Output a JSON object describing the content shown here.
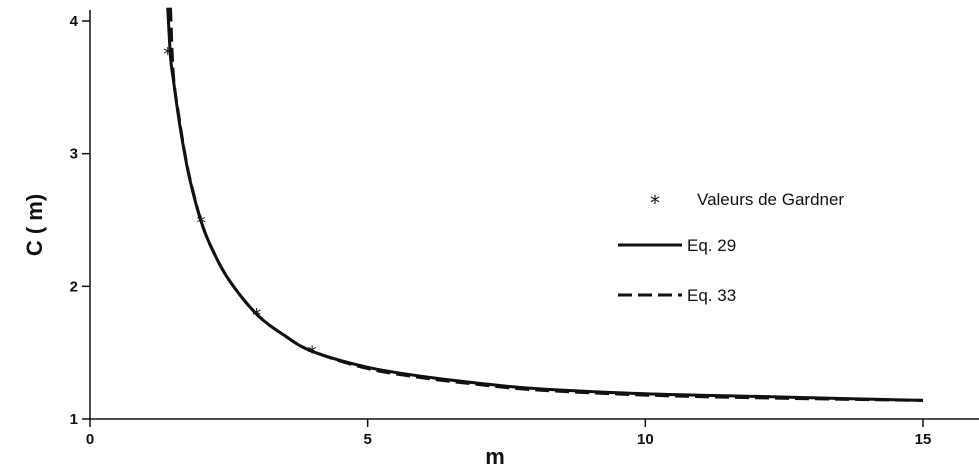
{
  "chart_data": {
    "type": "line",
    "xlabel": "m",
    "ylabel": "C ( m)",
    "xlim": [
      0,
      16
    ],
    "ylim": [
      1,
      4.1
    ],
    "x_ticks": [
      0,
      5,
      10,
      15
    ],
    "y_ticks": [
      1,
      2,
      3,
      4
    ],
    "grid": false,
    "legend_position": "right",
    "series": [
      {
        "name": "Valeurs de Gardner",
        "style": "markers",
        "marker": "*",
        "x": [
          1.4,
          2.0,
          3.0,
          4.0
        ],
        "y": [
          3.76,
          2.49,
          1.79,
          1.51
        ]
      },
      {
        "name": "Eq. 29",
        "style": "solid",
        "x": [
          1.4,
          1.45,
          1.5,
          1.6,
          1.7,
          1.8,
          2.0,
          2.2,
          2.5,
          3.0,
          3.5,
          4.0,
          5.0,
          6.0,
          7.0,
          8.0,
          10.0,
          12.0,
          15.0
        ],
        "y": [
          4.1,
          3.73,
          3.56,
          3.26,
          3.01,
          2.8,
          2.49,
          2.28,
          2.05,
          1.79,
          1.63,
          1.51,
          1.39,
          1.32,
          1.27,
          1.23,
          1.19,
          1.17,
          1.14
        ]
      },
      {
        "name": "Eq. 33",
        "style": "dashed",
        "x": [
          1.45,
          1.5,
          1.6,
          1.7,
          1.8,
          2.0,
          2.2,
          2.5,
          3.0,
          3.5,
          4.0,
          5.0,
          6.0,
          7.0,
          8.0,
          10.0,
          12.0,
          15.0
        ],
        "y": [
          4.1,
          3.6,
          3.28,
          3.02,
          2.81,
          2.49,
          2.28,
          2.05,
          1.79,
          1.63,
          1.51,
          1.38,
          1.31,
          1.26,
          1.22,
          1.18,
          1.16,
          1.14
        ]
      }
    ],
    "colors": {
      "ink": "#111111"
    }
  }
}
